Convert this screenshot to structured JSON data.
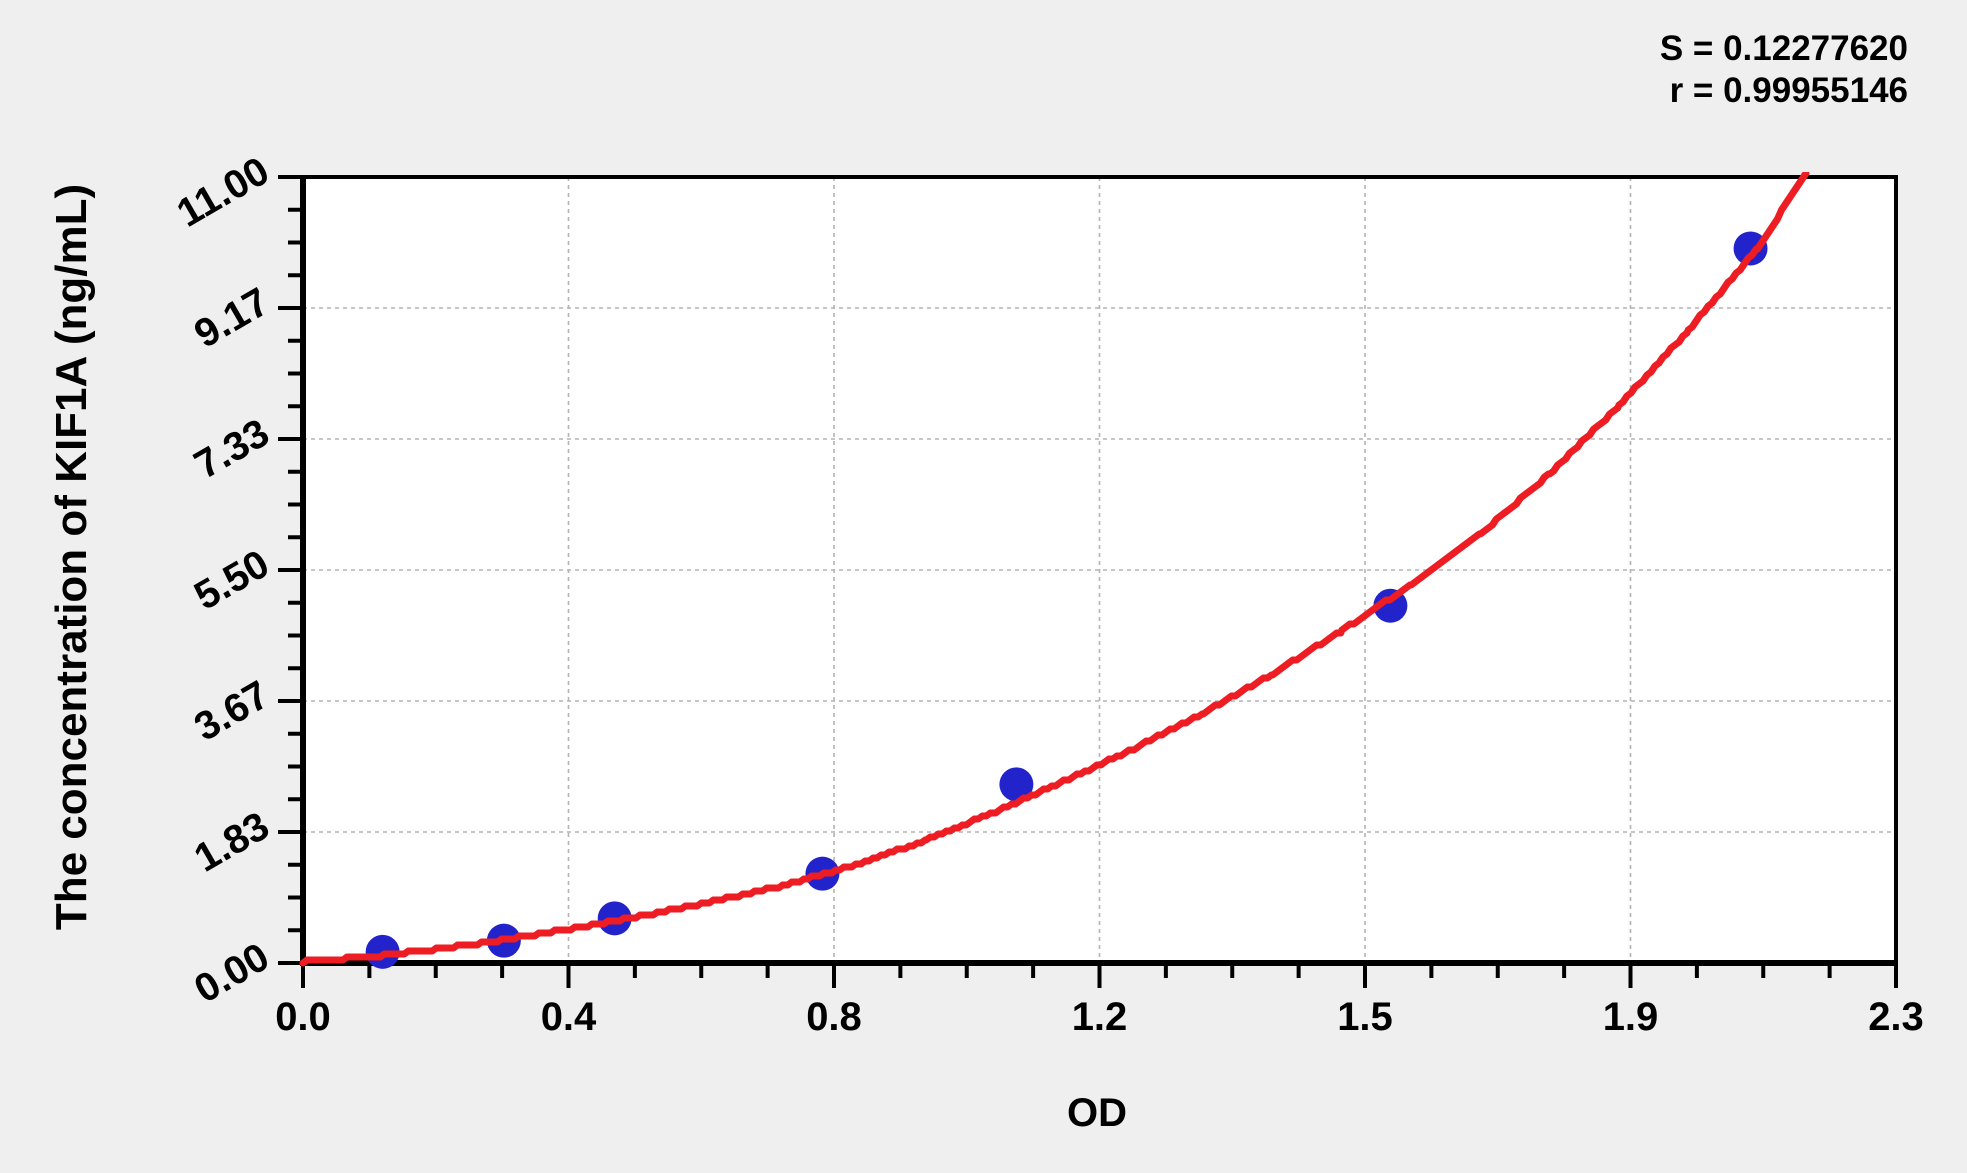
{
  "chart_data": {
    "type": "scatter",
    "title": "",
    "xlabel": "OD",
    "ylabel": "The concentration of KIF1A (ng/mL)",
    "xlim": [
      0,
      2.3
    ],
    "ylim": [
      0,
      11
    ],
    "x_tick_labels": [
      "0.0",
      "0.4",
      "0.8",
      "1.2",
      "1.5",
      "1.9",
      "2.3"
    ],
    "x_tick_values": [
      0,
      0.38333,
      0.76667,
      1.15,
      1.53333,
      1.91667,
      2.3
    ],
    "y_tick_labels": [
      "0.00",
      "1.83",
      "3.67",
      "5.50",
      "7.33",
      "9.17",
      "11.00"
    ],
    "y_tick_values": [
      0,
      1.83333,
      3.66667,
      5.5,
      7.33333,
      9.16667,
      11
    ],
    "minor_divisions": 4,
    "grid": {
      "show": true,
      "style": "dashed",
      "color": "#b4b4b4"
    },
    "legend": "none",
    "series": [
      {
        "name": "standard data points",
        "type": "scatter",
        "color": "#2323cb",
        "x": [
          0.115,
          0.29,
          0.45,
          0.75,
          1.03,
          1.57,
          2.09
        ],
        "y": [
          0.156,
          0.3125,
          0.625,
          1.25,
          2.5,
          5.0,
          10.0
        ]
      },
      {
        "name": "fitted standard curve",
        "type": "line",
        "color": "#ee1c23",
        "x": [
          0.0,
          0.1,
          0.2,
          0.3,
          0.4,
          0.5,
          0.6,
          0.7,
          0.8,
          0.9,
          1.0,
          1.1,
          1.2,
          1.3,
          1.4,
          1.5,
          1.6,
          1.7,
          1.8,
          1.9,
          2.0,
          2.1,
          2.17
        ],
        "y": [
          0.02,
          0.09,
          0.2,
          0.34,
          0.5,
          0.68,
          0.88,
          1.1,
          1.38,
          1.72,
          2.12,
          2.55,
          3.0,
          3.5,
          4.05,
          4.65,
          5.3,
          6.0,
          6.85,
          7.8,
          8.85,
          10.0,
          11.05
        ]
      }
    ],
    "annotations": {
      "s": "S = 0.12277620",
      "r": "r = 0.99955146"
    }
  }
}
